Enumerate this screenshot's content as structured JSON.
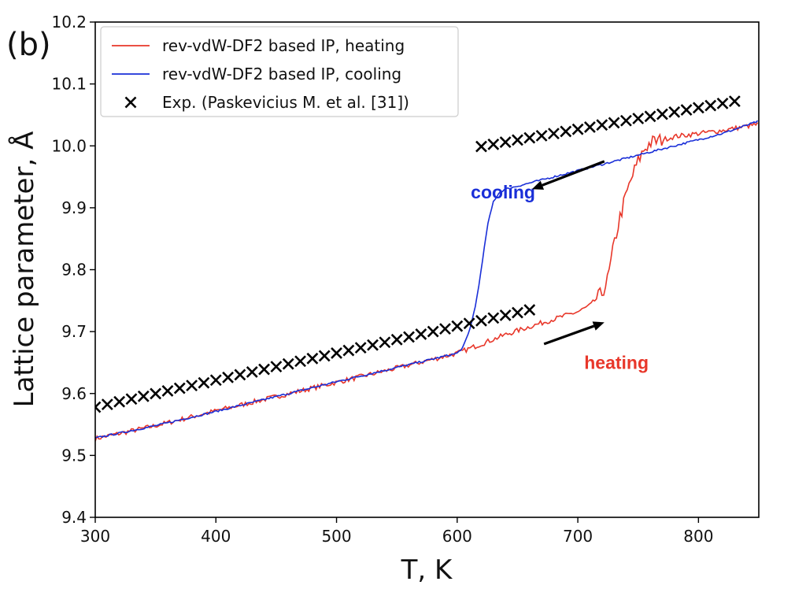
{
  "chart_data": {
    "type": "line",
    "panel_label": "(b)",
    "xlabel": "T, K",
    "ylabel": "Lattice parameter, Å",
    "xlim": [
      300,
      850
    ],
    "ylim": [
      9.4,
      10.2
    ],
    "xticks": [
      300,
      400,
      500,
      600,
      700,
      800
    ],
    "yticks": [
      9.4,
      9.5,
      9.6,
      9.7,
      9.8,
      9.9,
      10.0,
      10.1,
      10.2
    ],
    "ytick_labels": [
      "9.4",
      "9.5",
      "9.6",
      "9.7",
      "9.8",
      "9.9",
      "10.0",
      "10.1",
      "10.2"
    ],
    "grid": false,
    "legend_position": "top-left",
    "series": [
      {
        "name": "rev-vdW-DF2 based IP, heating",
        "style": "line",
        "color": "#e8372a",
        "x": [
          300,
          350,
          400,
          450,
          500,
          550,
          600,
          620,
          640,
          660,
          680,
          700,
          710,
          720,
          725,
          730,
          735,
          740,
          745,
          750,
          755,
          760,
          770,
          780,
          800,
          820,
          850
        ],
        "y": [
          9.527,
          9.548,
          9.572,
          9.595,
          9.618,
          9.641,
          9.665,
          9.68,
          9.695,
          9.708,
          9.72,
          9.732,
          9.742,
          9.762,
          9.785,
          9.84,
          9.885,
          9.92,
          9.95,
          9.975,
          9.995,
          10.005,
          10.01,
          10.015,
          10.02,
          10.025,
          10.035
        ]
      },
      {
        "name": "rev-vdW-DF2 based IP, cooling",
        "style": "line",
        "color": "#1a2fd8",
        "x": [
          300,
          350,
          400,
          450,
          500,
          550,
          600,
          605,
          610,
          615,
          620,
          625,
          630,
          635,
          640,
          650,
          660,
          680,
          700,
          720,
          740,
          760,
          780,
          800,
          820,
          850
        ],
        "y": [
          9.528,
          9.548,
          9.571,
          9.595,
          9.619,
          9.642,
          9.665,
          9.675,
          9.7,
          9.74,
          9.8,
          9.87,
          9.91,
          9.925,
          9.93,
          9.935,
          9.94,
          9.95,
          9.96,
          9.97,
          9.98,
          9.99,
          10.0,
          10.01,
          10.02,
          10.04
        ]
      },
      {
        "name": "Exp. (Paskevicius M. et al. [31])",
        "style": "x-markers",
        "color": "#000000",
        "segments": [
          {
            "x_start": 300,
            "x_end": 660,
            "y_start": 9.578,
            "y_end": 9.735,
            "step": 10
          },
          {
            "x_start": 620,
            "x_end": 830,
            "y_start": 9.999,
            "y_end": 10.072,
            "step": 10
          }
        ]
      }
    ],
    "annotations": [
      {
        "text": "cooling",
        "color": "#1a2fd8",
        "x": 638,
        "y": 9.915
      },
      {
        "text": "heating",
        "color": "#e8372a",
        "x": 732,
        "y": 9.64
      }
    ],
    "arrows": [
      {
        "from": [
          722,
          9.975
        ],
        "to": [
          662,
          9.93
        ]
      },
      {
        "from": [
          672,
          9.68
        ],
        "to": [
          722,
          9.715
        ]
      }
    ]
  }
}
